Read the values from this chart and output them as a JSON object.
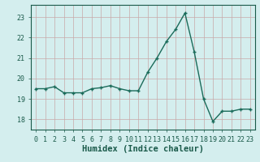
{
  "x": [
    0,
    1,
    2,
    3,
    4,
    5,
    6,
    7,
    8,
    9,
    10,
    11,
    12,
    13,
    14,
    15,
    16,
    17,
    18,
    19,
    20,
    21,
    22,
    23
  ],
  "y": [
    19.5,
    19.5,
    19.6,
    19.3,
    19.3,
    19.3,
    19.5,
    19.55,
    19.65,
    19.5,
    19.4,
    19.4,
    20.3,
    21.0,
    21.8,
    22.4,
    23.2,
    21.3,
    19.0,
    17.9,
    18.4,
    18.4,
    18.5,
    18.5
  ],
  "line_color": "#1a6b5a",
  "marker": "+",
  "marker_size": 3.5,
  "bg_color": "#d4eeee",
  "grid_color_v": "#c8a8a8",
  "grid_color_h": "#c8a8a8",
  "xlabel": "Humidex (Indice chaleur)",
  "xlabel_fontsize": 7.5,
  "xlabel_color": "#1a5a4a",
  "ylim": [
    17.5,
    23.6
  ],
  "xlim": [
    -0.5,
    23.5
  ],
  "yticks": [
    18,
    19,
    20,
    21,
    22,
    23
  ],
  "xticks": [
    0,
    1,
    2,
    3,
    4,
    5,
    6,
    7,
    8,
    9,
    10,
    11,
    12,
    13,
    14,
    15,
    16,
    17,
    18,
    19,
    20,
    21,
    22,
    23
  ],
  "tick_fontsize": 6,
  "tick_color": "#1a5a4a",
  "line_width": 1.0,
  "marker_color": "#1a6b5a"
}
